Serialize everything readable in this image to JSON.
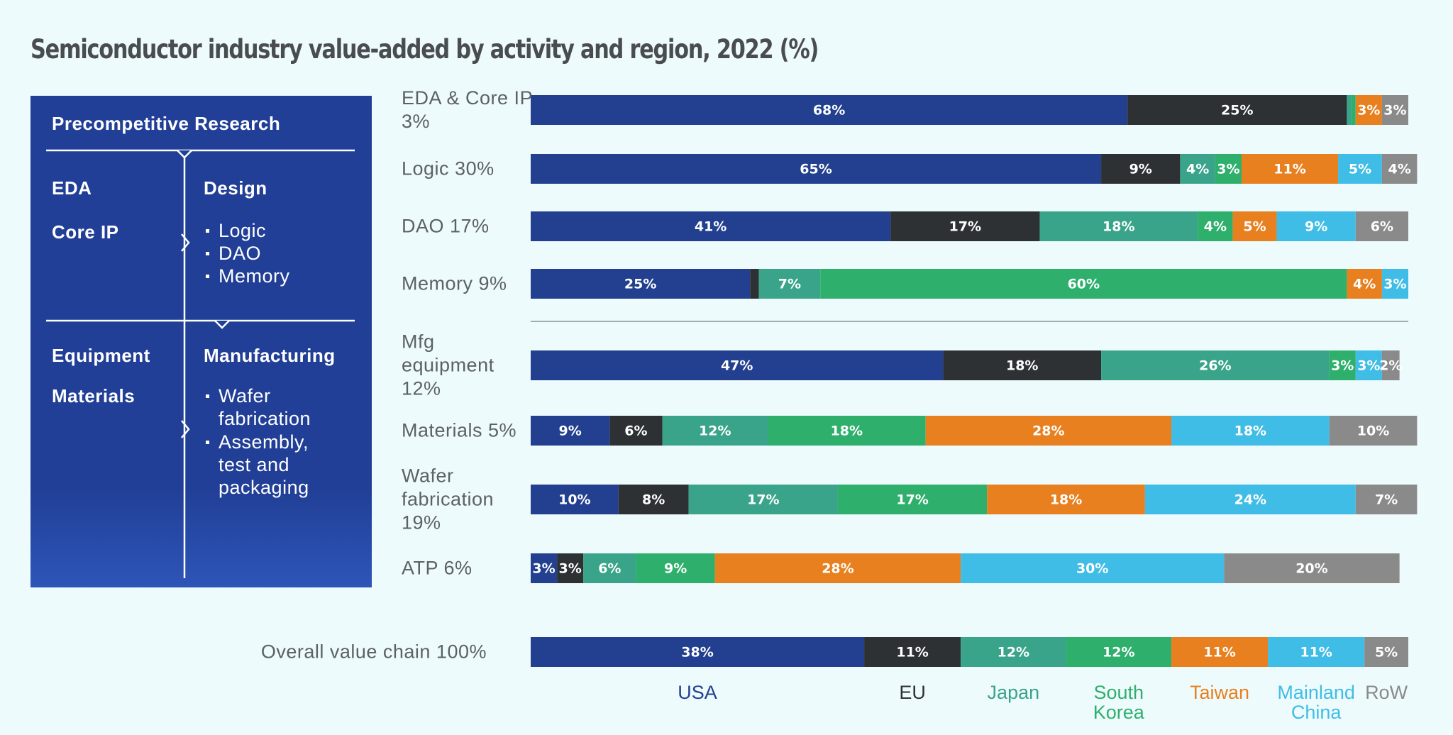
{
  "chart_data": {
    "type": "bar",
    "stacked": true,
    "orientation": "horizontal",
    "title": "Semiconductor industry value-added by activity and region, 2022 (%)",
    "categories": [
      "EDA & Core IP 3%",
      "Logic 30%",
      "DAO 17%",
      "Memory 9%",
      "Mfg equipment 12%",
      "Materials 5%",
      "Wafer fabrication 19%",
      "ATP 6%",
      "Overall value chain 100%"
    ],
    "xlim": [
      0,
      100
    ],
    "series": [
      {
        "name": "USA",
        "color": "#22408f",
        "values": [
          68,
          65,
          41,
          25,
          47,
          9,
          10,
          3,
          38
        ],
        "value_labels": [
          "68%",
          "65%",
          "41%",
          "25%",
          "47%",
          "9%",
          "10%",
          "3%",
          "38%"
        ]
      },
      {
        "name": "EU",
        "color": "#2d3134",
        "values": [
          25,
          9,
          17,
          1,
          18,
          6,
          8,
          3,
          11
        ],
        "value_labels": [
          "25%",
          "9%",
          "17%",
          null,
          "18%",
          "6%",
          "8%",
          "3%",
          "11%"
        ]
      },
      {
        "name": "Japan",
        "color": "#3aa48a",
        "values": [
          0.5,
          4,
          18,
          7,
          26,
          12,
          17,
          6,
          12
        ],
        "value_labels": [
          null,
          "4%",
          "18%",
          "7%",
          "26%",
          "12%",
          "17%",
          "6%",
          "12%"
        ]
      },
      {
        "name": "South Korea",
        "color": "#2eb06c",
        "values": [
          0.5,
          3,
          4,
          60,
          3,
          18,
          17,
          9,
          12
        ],
        "value_labels": [
          null,
          "3%",
          "4%",
          "60%",
          "3%",
          "18%",
          "17%",
          "9%",
          "12%"
        ]
      },
      {
        "name": "Taiwan",
        "color": "#e8801f",
        "values": [
          3,
          11,
          5,
          4,
          0,
          28,
          18,
          28,
          11
        ],
        "value_labels": [
          "3%",
          "11%",
          "5%",
          "4%",
          null,
          "28%",
          "18%",
          "28%",
          "11%"
        ]
      },
      {
        "name": "Mainland China",
        "color": "#40bde6",
        "values": [
          0,
          5,
          9,
          3,
          3,
          18,
          24,
          30,
          11
        ],
        "value_labels": [
          null,
          "5%",
          "9%",
          "3%",
          "3%",
          "18%",
          "24%",
          "30%",
          "11%"
        ]
      },
      {
        "name": "RoW",
        "color": "#8a8a8a",
        "values": [
          3,
          4,
          6,
          0,
          2,
          10,
          7,
          20,
          5
        ],
        "value_labels": [
          "3%",
          "4%",
          "6%",
          null,
          "2%",
          "10%",
          "7%",
          "20%",
          "5%"
        ]
      }
    ]
  },
  "panel": {
    "title": "Precompetitive Research",
    "design_left": [
      "EDA",
      "Core IP"
    ],
    "design_title": "Design",
    "design_items": [
      "Logic",
      "DAO",
      "Memory"
    ],
    "mfg_left": [
      "Equipment",
      "Materials"
    ],
    "mfg_title": "Manufacturing",
    "mfg_items": [
      "Wafer fabrication",
      "Assembly, test and packaging"
    ]
  }
}
